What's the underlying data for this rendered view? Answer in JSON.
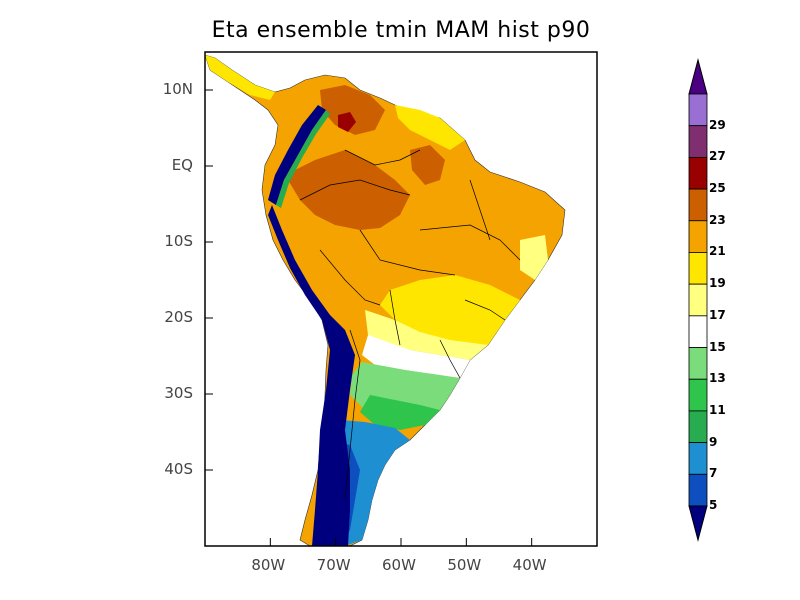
{
  "title": "Eta ensemble tmin MAM hist p90",
  "map": {
    "lat_ticks": [
      {
        "label": "10N",
        "lat": 10
      },
      {
        "label": "EQ",
        "lat": 0
      },
      {
        "label": "10S",
        "lat": -10
      },
      {
        "label": "20S",
        "lat": -20
      },
      {
        "label": "30S",
        "lat": -30
      },
      {
        "label": "40S",
        "lat": -40
      }
    ],
    "lon_ticks": [
      {
        "label": "80W",
        "lon": -80
      },
      {
        "label": "70W",
        "lon": -70
      },
      {
        "label": "60W",
        "lon": -60
      },
      {
        "label": "50W",
        "lon": -50
      },
      {
        "label": "40W",
        "lon": -40
      }
    ],
    "extent": {
      "lon_min": -90,
      "lon_max": -30,
      "lat_min": -50,
      "lat_max": 15
    }
  },
  "colorbar": {
    "levels": [
      5,
      7,
      9,
      11,
      13,
      15,
      17,
      19,
      21,
      23,
      25,
      27,
      29
    ],
    "labels": [
      "5",
      "7",
      "9",
      "11",
      "13",
      "15",
      "17",
      "19",
      "21",
      "23",
      "25",
      "27",
      "29"
    ],
    "colors": [
      "#00007f",
      "#0d4fbf",
      "#1e8fd0",
      "#27ad4f",
      "#2fc44c",
      "#7bdc7b",
      "#ffffff",
      "#ffff80",
      "#ffe600",
      "#f5a300",
      "#cc5f00",
      "#990000",
      "#7f2f6f",
      "#9a6fd4",
      "#4b0082"
    ]
  }
}
